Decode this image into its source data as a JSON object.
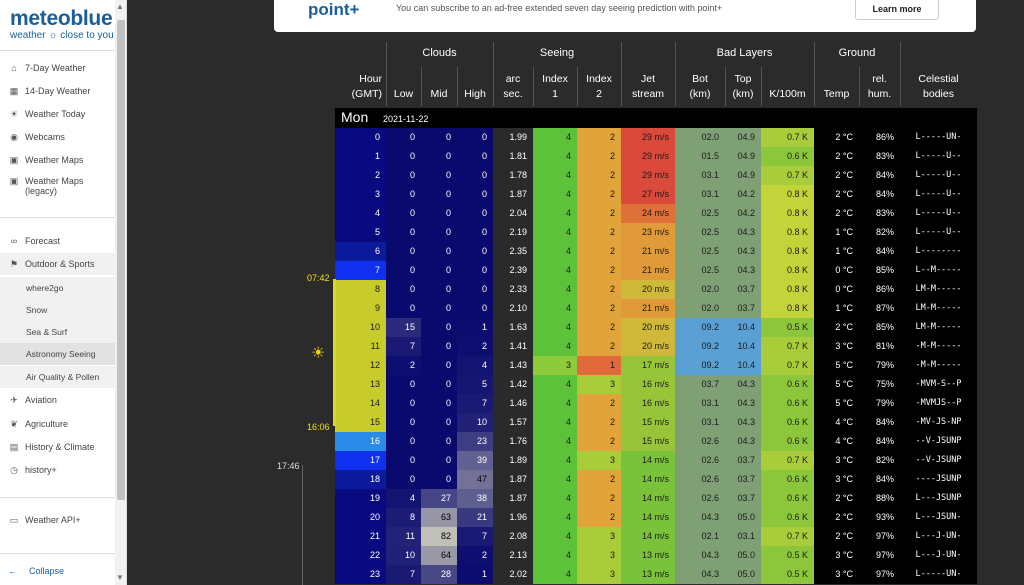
{
  "logo": {
    "brand": "meteoblue",
    "tagline": "weather ☼ close to you"
  },
  "nav": {
    "items": [
      {
        "label": "7-Day Weather",
        "icon": "home-icon"
      },
      {
        "label": "14-Day Weather",
        "icon": "calendar-icon"
      },
      {
        "label": "Weather Today",
        "icon": "weather-icon"
      },
      {
        "label": "Webcams",
        "icon": "webcam-icon"
      },
      {
        "label": "Weather Maps",
        "icon": "map-icon"
      },
      {
        "label": "Weather Maps (legacy)",
        "icon": "map-icon"
      }
    ],
    "forecast": "Forecast",
    "outdoor": "Outdoor & Sports",
    "sub_items": [
      "where2go",
      "Snow",
      "Sea & Surf",
      "Astronomy Seeing",
      "Air Quality & Pollen"
    ],
    "bottom_items": [
      "Aviation",
      "Agriculture",
      "History & Climate",
      "history+"
    ],
    "api": "Weather API+",
    "collapse": "Collapse"
  },
  "banner": {
    "logo": "point+",
    "message": "You can subscribe to an ad-free extended seven day seeing prediction with point+",
    "button": "Learn more"
  },
  "table": {
    "groups": {
      "clouds": "Clouds",
      "seeing": "Seeing",
      "bad_layers": "Bad Layers",
      "ground": "Ground"
    },
    "columns": {
      "hour": "Hour",
      "hour_sub": "(GMT)",
      "low": "Low",
      "mid": "Mid",
      "high": "High",
      "arc": "arc",
      "arc_sub": "sec.",
      "idx1": "Index",
      "idx1_sub": "1",
      "idx2": "Index",
      "idx2_sub": "2",
      "jet": "Jet",
      "jet_sub": "stream",
      "bot": "Bot",
      "bot_sub": "(km)",
      "top": "Top",
      "top_sub": "(km)",
      "k100": "K/100m",
      "temp": "Temp",
      "rel": "rel.",
      "rel_sub": "hum.",
      "cel": "Celestial",
      "cel_sub": "bodies"
    },
    "day": "Mon",
    "date": "2021-11-22",
    "sunrise": "07:42",
    "sunset": "16:06",
    "moon_time": "17:46",
    "rows": [
      [
        "0",
        "0",
        "0",
        "0",
        "1.99",
        "4",
        "2",
        "29 m/s",
        "02.0",
        "04.9",
        "0.7 K",
        "2 °C",
        "86%",
        "L-----UN-"
      ],
      [
        "1",
        "0",
        "0",
        "0",
        "1.81",
        "4",
        "2",
        "29 m/s",
        "01.5",
        "04.9",
        "0.6 K",
        "2 °C",
        "83%",
        "L-----U--"
      ],
      [
        "2",
        "0",
        "0",
        "0",
        "1.78",
        "4",
        "2",
        "29 m/s",
        "03.1",
        "04.9",
        "0.7 K",
        "2 °C",
        "84%",
        "L-----U--"
      ],
      [
        "3",
        "0",
        "0",
        "0",
        "1.87",
        "4",
        "2",
        "27 m/s",
        "03.1",
        "04.2",
        "0.8 K",
        "2 °C",
        "84%",
        "L-----U--"
      ],
      [
        "4",
        "0",
        "0",
        "0",
        "2.04",
        "4",
        "2",
        "24 m/s",
        "02.5",
        "04.2",
        "0.8 K",
        "2 °C",
        "83%",
        "L-----U--"
      ],
      [
        "5",
        "0",
        "0",
        "0",
        "2.19",
        "4",
        "2",
        "23 m/s",
        "02.5",
        "04.3",
        "0.8 K",
        "1 °C",
        "82%",
        "L-----U--"
      ],
      [
        "6",
        "0",
        "0",
        "0",
        "2.35",
        "4",
        "2",
        "21 m/s",
        "02.5",
        "04.3",
        "0.8 K",
        "1 °C",
        "84%",
        "L--------"
      ],
      [
        "7",
        "0",
        "0",
        "0",
        "2.39",
        "4",
        "2",
        "21 m/s",
        "02.5",
        "04.3",
        "0.8 K",
        "0 °C",
        "85%",
        "L--M-----"
      ],
      [
        "8",
        "0",
        "0",
        "0",
        "2.33",
        "4",
        "2",
        "20 m/s",
        "02.0",
        "03.7",
        "0.8 K",
        "0 °C",
        "86%",
        "LM-M-----"
      ],
      [
        "9",
        "0",
        "0",
        "0",
        "2.10",
        "4",
        "2",
        "21 m/s",
        "02.0",
        "03.7",
        "0.8 K",
        "1 °C",
        "87%",
        "LM-M-----"
      ],
      [
        "10",
        "15",
        "0",
        "1",
        "1.63",
        "4",
        "2",
        "20 m/s",
        "09.2",
        "10.4",
        "0.5 K",
        "2 °C",
        "85%",
        "LM-M-----"
      ],
      [
        "11",
        "7",
        "0",
        "2",
        "1.41",
        "4",
        "2",
        "20 m/s",
        "09.2",
        "10.4",
        "0.7 K",
        "3 °C",
        "81%",
        "-M-M-----"
      ],
      [
        "12",
        "2",
        "0",
        "4",
        "1.43",
        "3",
        "1",
        "17 m/s",
        "09.2",
        "10.4",
        "0.7 K",
        "5 °C",
        "79%",
        "-M-M-----"
      ],
      [
        "13",
        "0",
        "0",
        "5",
        "1.42",
        "4",
        "3",
        "16 m/s",
        "03.7",
        "04.3",
        "0.6 K",
        "5 °C",
        "75%",
        "-MVM-S--P"
      ],
      [
        "14",
        "0",
        "0",
        "7",
        "1.46",
        "4",
        "2",
        "16 m/s",
        "03.1",
        "04.3",
        "0.6 K",
        "5 °C",
        "79%",
        "-MVMJS--P"
      ],
      [
        "15",
        "0",
        "0",
        "10",
        "1.57",
        "4",
        "2",
        "15 m/s",
        "03.1",
        "04.3",
        "0.6 K",
        "4 °C",
        "84%",
        "-MV-JS-NP"
      ],
      [
        "16",
        "0",
        "0",
        "23",
        "1.76",
        "4",
        "2",
        "15 m/s",
        "02.6",
        "04.3",
        "0.6 K",
        "4 °C",
        "84%",
        "--V-JSUNP"
      ],
      [
        "17",
        "0",
        "0",
        "39",
        "1.89",
        "4",
        "3",
        "14 m/s",
        "02.6",
        "03.7",
        "0.7 K",
        "3 °C",
        "82%",
        "--V-JSUNP"
      ],
      [
        "18",
        "0",
        "0",
        "47",
        "1.87",
        "4",
        "2",
        "14 m/s",
        "02.6",
        "03.7",
        "0.6 K",
        "3 °C",
        "84%",
        "----JSUNP"
      ],
      [
        "19",
        "4",
        "27",
        "38",
        "1.87",
        "4",
        "2",
        "14 m/s",
        "02.6",
        "03.7",
        "0.6 K",
        "2 °C",
        "88%",
        "L---JSUNP"
      ],
      [
        "20",
        "8",
        "63",
        "21",
        "1.96",
        "4",
        "2",
        "14 m/s",
        "04.3",
        "05.0",
        "0.6 K",
        "2 °C",
        "93%",
        "L---JSUN-"
      ],
      [
        "21",
        "11",
        "82",
        "7",
        "2.08",
        "4",
        "3",
        "14 m/s",
        "02.1",
        "03.1",
        "0.7 K",
        "2 °C",
        "97%",
        "L---J-UN-"
      ],
      [
        "22",
        "10",
        "64",
        "2",
        "2.13",
        "4",
        "3",
        "13 m/s",
        "04.3",
        "05.0",
        "0.5 K",
        "3 °C",
        "97%",
        "L---J-UN-"
      ],
      [
        "23",
        "7",
        "28",
        "1",
        "2.02",
        "4",
        "3",
        "13 m/s",
        "04.3",
        "05.0",
        "0.5 K",
        "3 °C",
        "97%",
        "L-----UN-"
      ]
    ]
  }
}
